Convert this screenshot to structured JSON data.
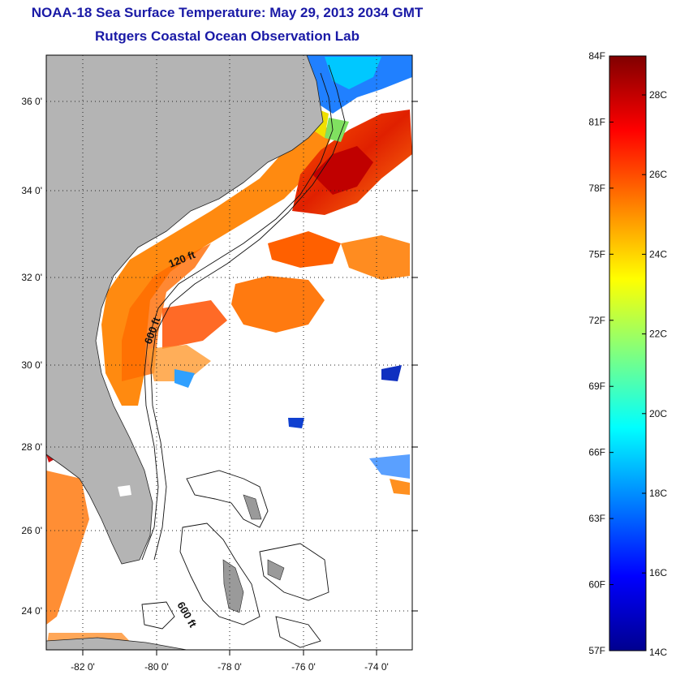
{
  "header": {
    "title": "NOAA-18 Sea Surface Temperature:  May 29, 2013 2034 GMT",
    "subtitle": "Rutgers Coastal Ocean Observation Lab"
  },
  "map": {
    "lat_ticks": [
      "36 0'",
      "34 0'",
      "32 0'",
      "30 0'",
      "28 0'",
      "26 0'",
      "24 0'"
    ],
    "lon_ticks": [
      "-82 0'",
      "-80 0'",
      "-78 0'",
      "-76 0'",
      "-74 0'"
    ],
    "contour_labels": [
      "120 ft",
      "600 ft",
      "600 ft"
    ],
    "land_color": "#b4b4b4",
    "ocean_color": "#ffffff"
  },
  "colorbar": {
    "left_labels": [
      "84F",
      "81F",
      "78F",
      "75F",
      "72F",
      "69F",
      "66F",
      "63F",
      "60F",
      "57F"
    ],
    "right_labels": [
      "28C",
      "26C",
      "24C",
      "22C",
      "20C",
      "18C",
      "16C",
      "14C"
    ],
    "colormap": "jet",
    "colors": [
      "#00008f",
      "#0000ff",
      "#00ffff",
      "#ffff00",
      "#ff0000",
      "#800000"
    ]
  }
}
